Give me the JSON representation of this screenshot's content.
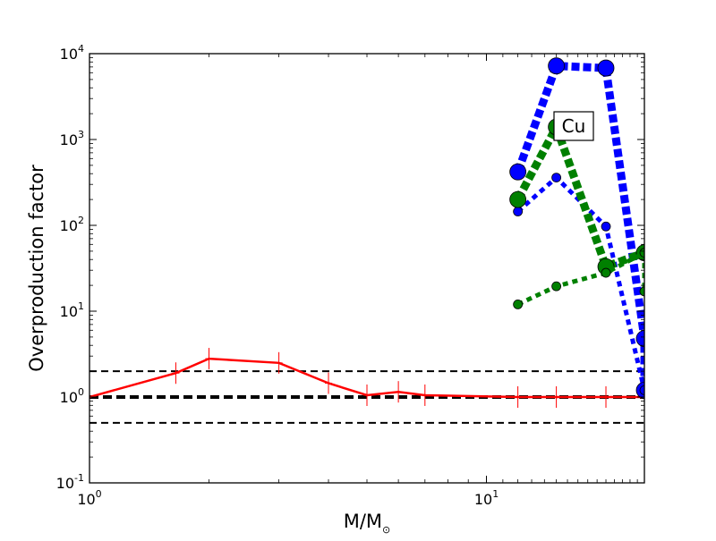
{
  "chart_data": {
    "type": "line",
    "title": "",
    "xlabel": "M/M",
    "xlabel_sub": "⊙",
    "ylabel": "Overproduction factor",
    "xscale": "log",
    "yscale": "log",
    "xlim": [
      1,
      25
    ],
    "ylim": [
      0.1,
      10000
    ],
    "x_ticks": [
      {
        "value": 1,
        "base": "10",
        "exp": "0"
      },
      {
        "value": 10,
        "base": "10",
        "exp": "1"
      }
    ],
    "y_ticks": [
      {
        "value": 0.1,
        "base": "10",
        "exp": "-1"
      },
      {
        "value": 1,
        "base": "10",
        "exp": "0"
      },
      {
        "value": 10,
        "base": "10",
        "exp": "1"
      },
      {
        "value": 100,
        "base": "10",
        "exp": "2"
      },
      {
        "value": 1000,
        "base": "10",
        "exp": "3"
      },
      {
        "value": 10000,
        "base": "10",
        "exp": "4"
      }
    ],
    "annotation": "Cu",
    "reference_lines": [
      {
        "y": 2.0,
        "style": "dashed",
        "color": "#000000"
      },
      {
        "y": 1.0,
        "style": "thick-dashed",
        "color": "#000000"
      },
      {
        "y": 0.5,
        "style": "dashed",
        "color": "#000000"
      }
    ],
    "series": [
      {
        "color": "#ff0000",
        "style": "solid",
        "markers": "error-bars",
        "x": [
          1,
          1.65,
          2,
          3,
          4,
          5,
          6,
          7,
          12,
          15,
          20,
          25
        ],
        "y": [
          1.0,
          1.9,
          2.8,
          2.5,
          1.45,
          1.05,
          1.15,
          1.05,
          1.0,
          1.0,
          1.0,
          1.0
        ]
      },
      {
        "color": "#0000ff",
        "style": "thick-dotted",
        "markers": "large",
        "x": [
          12,
          15,
          20,
          25,
          25
        ],
        "y": [
          420,
          7200,
          6800,
          4.8,
          1.2
        ]
      },
      {
        "color": "#0000ff",
        "style": "dotted",
        "markers": "small",
        "x": [
          12,
          15,
          20,
          25
        ],
        "y": [
          145,
          360,
          97,
          1.2
        ]
      },
      {
        "color": "#008000",
        "style": "thick-dotted",
        "markers": "large",
        "x": [
          12,
          15,
          20,
          25
        ],
        "y": [
          200,
          1400,
          33,
          48
        ]
      },
      {
        "color": "#008000",
        "style": "dotted",
        "markers": "small",
        "x": [
          12,
          15,
          20,
          25,
          25
        ],
        "y": [
          12,
          19.5,
          28,
          48,
          17
        ]
      }
    ]
  }
}
